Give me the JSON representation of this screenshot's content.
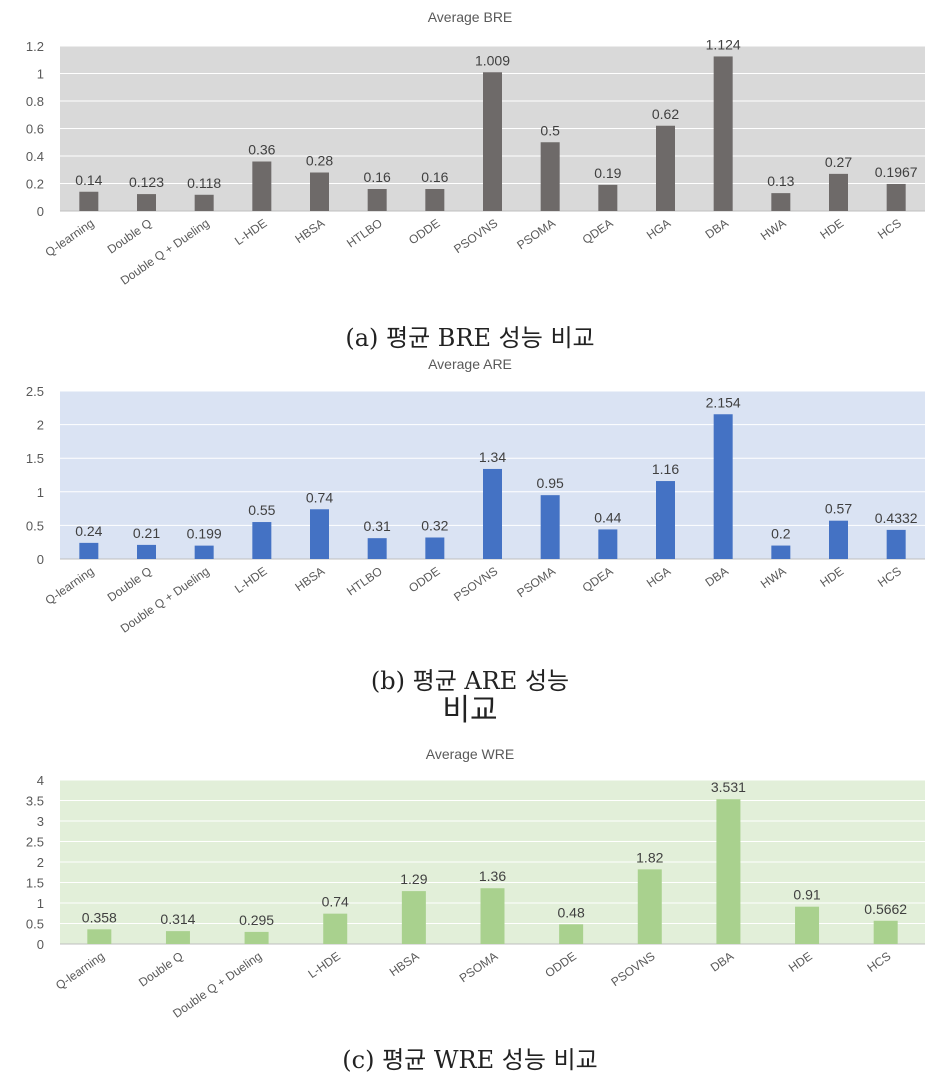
{
  "charts": [
    {
      "id": "bre",
      "caption_line1": "(a) 평균 BRE 성능 비교",
      "caption_line2": ""
    },
    {
      "id": "are",
      "caption_line1": "(b) 평균 ARE 성능",
      "caption_line2": "비교"
    },
    {
      "id": "wre",
      "caption_line1": "(c) 평균 WRE 성능 비교",
      "caption_line2": ""
    }
  ],
  "chart_data": [
    {
      "type": "bar",
      "title": "Average BRE",
      "xlabel": "",
      "ylabel": "",
      "ylim": [
        0,
        1.2
      ],
      "yticks": [
        "0",
        "0.2",
        "0.4",
        "0.6",
        "0.8",
        "1",
        "1.2"
      ],
      "grid": true,
      "bar_color": "#6e6a69",
      "plot_bg": "#d9d9d9",
      "categories": [
        "Q-learning",
        "Double Q",
        "Double Q + Dueling",
        "L-HDE",
        "HBSA",
        "HTLBO",
        "ODDE",
        "PSOVNS",
        "PSOMA",
        "QDEA",
        "HGA",
        "DBA",
        "HWA",
        "HDE",
        "HCS"
      ],
      "values": [
        0.14,
        0.123,
        0.118,
        0.36,
        0.28,
        0.16,
        0.16,
        1.009,
        0.5,
        0.19,
        0.62,
        1.124,
        0.13,
        0.27,
        0.1967
      ],
      "labels": [
        "0.14",
        "0.123",
        "0.118",
        "0.36",
        "0.28",
        "0.16",
        "0.16",
        "1.009",
        "0.5",
        "0.19",
        "0.62",
        "1.124",
        "0.13",
        "0.27",
        "0.1967"
      ]
    },
    {
      "type": "bar",
      "title": "Average ARE",
      "xlabel": "",
      "ylabel": "",
      "ylim": [
        0,
        2.5
      ],
      "yticks": [
        "0",
        "0.5",
        "1",
        "1.5",
        "2",
        "2.5"
      ],
      "grid": true,
      "bar_color": "#4472c4",
      "plot_bg": "#dae3f3",
      "categories": [
        "Q-learning",
        "Double Q",
        "Double Q + Dueling",
        "L-HDE",
        "HBSA",
        "HTLBO",
        "ODDE",
        "PSOVNS",
        "PSOMA",
        "QDEA",
        "HGA",
        "DBA",
        "HWA",
        "HDE",
        "HCS"
      ],
      "values": [
        0.24,
        0.21,
        0.199,
        0.55,
        0.74,
        0.31,
        0.32,
        1.34,
        0.95,
        0.44,
        1.16,
        2.154,
        0.2,
        0.57,
        0.4332
      ],
      "labels": [
        "0.24",
        "0.21",
        "0.199",
        "0.55",
        "0.74",
        "0.31",
        "0.32",
        "1.34",
        "0.95",
        "0.44",
        "1.16",
        "2.154",
        "0.2",
        "0.57",
        "0.4332"
      ]
    },
    {
      "type": "bar",
      "title": "Average WRE",
      "xlabel": "",
      "ylabel": "",
      "ylim": [
        0,
        4
      ],
      "yticks": [
        "0",
        "0.5",
        "1",
        "1.5",
        "2",
        "2.5",
        "3",
        "3.5",
        "4"
      ],
      "grid": true,
      "bar_color": "#a9d18e",
      "plot_bg": "#e2efd9",
      "categories": [
        "Q-learning",
        "Double Q",
        "Double Q + Dueling",
        "L-HDE",
        "HBSA",
        "PSOMA",
        "ODDE",
        "PSOVNS",
        "DBA",
        "HDE",
        "HCS"
      ],
      "values": [
        0.358,
        0.314,
        0.295,
        0.74,
        1.29,
        1.36,
        0.48,
        1.82,
        3.531,
        0.91,
        0.5662
      ],
      "labels": [
        "0.358",
        "0.314",
        "0.295",
        "0.74",
        "1.29",
        "1.36",
        "0.48",
        "1.82",
        "3.531",
        "0.91",
        "0.5662"
      ]
    }
  ]
}
